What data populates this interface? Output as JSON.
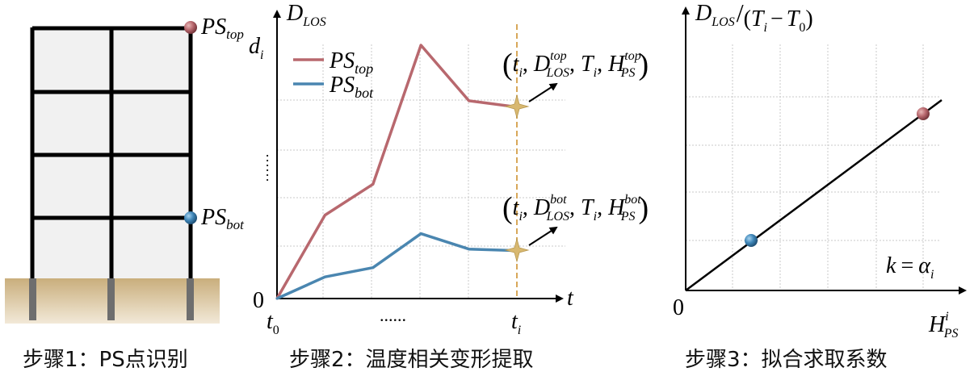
{
  "colors": {
    "top": "#B8686E",
    "bot": "#4A86B0",
    "ground": "#CBB07E",
    "dashed": "#D8A85A",
    "star": "#D8B870",
    "wall": "#F1F1F1",
    "frame": "#000000"
  },
  "panel1": {
    "ps_top_label": "PS",
    "ps_top_sub": "top",
    "ps_bot_label": "PS",
    "ps_bot_sub": "bot",
    "caption": "步骤1：PS点识别"
  },
  "panel2": {
    "y_axis_label": "D",
    "y_axis_sub": "LOS",
    "x_axis_label": "t",
    "di_label": "d",
    "di_sub": "i",
    "y_dots": "……",
    "origin": "0",
    "t0_label": "t",
    "t0_sub": "0",
    "x_dots": "......",
    "ti_label": "t",
    "ti_sub": "i",
    "legend_top": "PS",
    "legend_top_sub": "top",
    "legend_bot": "PS",
    "legend_bot_sub": "bot",
    "tuple_top": {
      "t": "t",
      "ti": "i",
      "D": "D",
      "Dsup": "top",
      "Dsub": "LOS",
      "T": "T",
      "Ti": "i",
      "H": "H",
      "Hsup": "top",
      "Hsub": "PS"
    },
    "tuple_bot": {
      "t": "t",
      "ti": "i",
      "D": "D",
      "Dsup": "bot",
      "Dsub": "LOS",
      "T": "T",
      "Ti": "i",
      "H": "H",
      "Hsup": "bot",
      "Hsub": "PS"
    },
    "caption": "步骤2：温度相关变形提取"
  },
  "panel3": {
    "y_axis_label": {
      "D": "D",
      "Dsub": "LOS",
      "slash": "/",
      "paren_open": "(",
      "T": "T",
      "Ti": "i",
      "minus": "−",
      "T0": "T",
      "T0sub": "0",
      "paren_close": ")"
    },
    "origin": "0",
    "x_axis_label": {
      "H": "H",
      "Hsup": "i",
      "Hsub": "PS"
    },
    "slope_label": {
      "k": "k",
      "eq": "=",
      "alpha": "α",
      "alpha_sub": "i"
    },
    "caption": "步骤3：拟合求取系数"
  },
  "chart_data": {
    "type": "line",
    "x": [
      "t0",
      "",
      "",
      "",
      "",
      "ti"
    ],
    "series": [
      {
        "name": "PS_top",
        "values": [
          0,
          27,
          37,
          82,
          64,
          62
        ]
      },
      {
        "name": "PS_bot",
        "values": [
          0,
          7,
          10,
          21,
          16,
          15.5
        ]
      }
    ]
  }
}
